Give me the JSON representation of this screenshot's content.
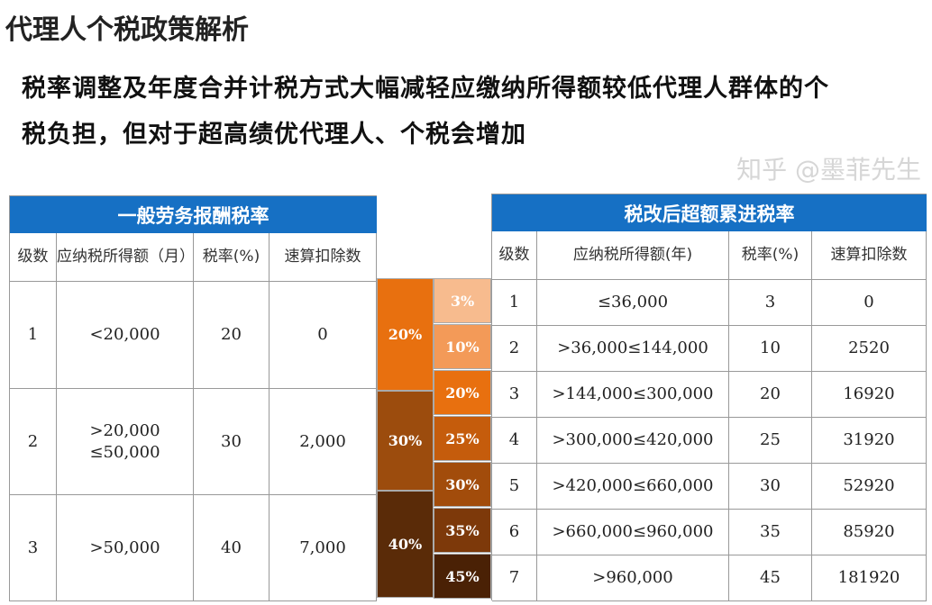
{
  "title": "代理人个税政策解析",
  "subtitle": [
    "税率调整及年度合并计税方式大幅减轻应缴纳所得额较低代理人群体的个",
    "税负担，但对于超高绩优代理人、个税会增加"
  ],
  "left_table": {
    "title": "一般劳务报酬税率",
    "headers": [
      "级数",
      "应纳税所得额（月）",
      "税率(%)",
      "速算扣除数"
    ],
    "rows": [
      [
        "1",
        "<20,000",
        "20",
        "0"
      ],
      [
        "2",
        ">20,000 ≤50,000",
        "30",
        "2,000"
      ],
      [
        "3",
        ">50,000",
        "40",
        "7,000"
      ]
    ]
  },
  "right_table": {
    "title": "税改后超额累进税率",
    "headers": [
      "级数",
      "应纳税所得额(年)",
      "税率(%)",
      "速算扣除数"
    ],
    "rows": [
      [
        "1",
        "≤36,000",
        "3",
        "0"
      ],
      [
        "2",
        ">36,000≤144,000",
        "10",
        "2520"
      ],
      [
        "3",
        ">144,000≤300,000",
        "20",
        "16920"
      ],
      [
        "4",
        ">300,000≤420,000",
        "25",
        "31920"
      ],
      [
        "5",
        ">420,000≤660,000",
        "30",
        "52920"
      ],
      [
        "6",
        ">660,000≤960,000",
        "35",
        "85920"
      ],
      [
        "7",
        ">960,000",
        "45",
        "181920"
      ]
    ]
  },
  "bridge": {
    "old_rates": [
      "20%",
      "30%",
      "40%"
    ],
    "old_colors": [
      "#e8700f",
      "#9c4c0d",
      "#5a2b08"
    ],
    "new_rates": [
      "3%",
      "10%",
      "20%",
      "25%",
      "30%",
      "35%",
      "45%"
    ],
    "new_colors": [
      "#f7bb8e",
      "#f39a58",
      "#e8700f",
      "#c55c0c",
      "#a24c0b",
      "#7d390a",
      "#4a2105"
    ]
  },
  "watermark": "知乎 @墨菲先生"
}
